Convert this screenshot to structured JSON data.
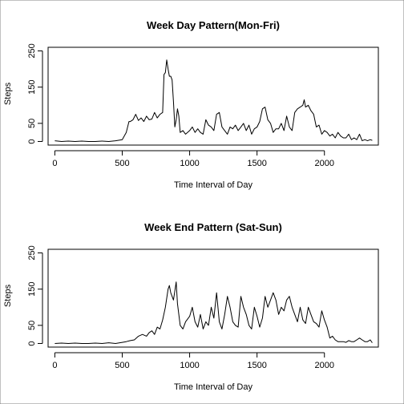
{
  "chart_data": [
    {
      "type": "line",
      "title": "Week Day Pattern(Mon-Fri)",
      "xlabel": "Time Interval of Day",
      "ylabel": "Steps",
      "xlim": [
        -50,
        2400
      ],
      "ylim": [
        -10,
        260
      ],
      "xticks": [
        0,
        500,
        1000,
        1500,
        2000
      ],
      "yticks": [
        0,
        50,
        150,
        250
      ],
      "grid": false,
      "x": [
        0,
        50,
        100,
        150,
        200,
        250,
        300,
        350,
        400,
        450,
        500,
        530,
        550,
        560,
        580,
        600,
        620,
        640,
        660,
        680,
        700,
        720,
        740,
        760,
        780,
        800,
        810,
        820,
        830,
        840,
        850,
        860,
        870,
        880,
        890,
        900,
        910,
        920,
        930,
        950,
        970,
        1000,
        1020,
        1040,
        1060,
        1080,
        1100,
        1120,
        1140,
        1160,
        1180,
        1200,
        1220,
        1240,
        1260,
        1280,
        1300,
        1320,
        1340,
        1360,
        1380,
        1400,
        1420,
        1440,
        1460,
        1480,
        1500,
        1520,
        1540,
        1560,
        1580,
        1600,
        1620,
        1640,
        1660,
        1680,
        1700,
        1720,
        1740,
        1760,
        1780,
        1800,
        1820,
        1840,
        1850,
        1860,
        1880,
        1900,
        1920,
        1940,
        1960,
        1980,
        2000,
        2020,
        2040,
        2060,
        2080,
        2100,
        2120,
        2140,
        2160,
        2180,
        2200,
        2220,
        2240,
        2260,
        2280,
        2300,
        2320,
        2340,
        2355
      ],
      "y": [
        2,
        0,
        1,
        0,
        1,
        0,
        0,
        1,
        0,
        2,
        5,
        25,
        55,
        55,
        60,
        75,
        58,
        65,
        55,
        70,
        60,
        62,
        80,
        65,
        75,
        80,
        185,
        190,
        225,
        200,
        180,
        180,
        170,
        110,
        40,
        60,
        90,
        70,
        25,
        30,
        20,
        30,
        40,
        25,
        35,
        25,
        20,
        60,
        45,
        40,
        30,
        75,
        80,
        40,
        30,
        20,
        40,
        35,
        45,
        30,
        40,
        50,
        30,
        45,
        20,
        35,
        40,
        55,
        90,
        95,
        60,
        50,
        25,
        35,
        35,
        50,
        30,
        70,
        40,
        30,
        80,
        90,
        95,
        100,
        115,
        95,
        100,
        85,
        75,
        40,
        45,
        20,
        30,
        25,
        15,
        20,
        10,
        25,
        15,
        10,
        10,
        20,
        5,
        10,
        5,
        20,
        2,
        5,
        2,
        5,
        3
      ],
      "color": "#000000"
    },
    {
      "type": "line",
      "title": "Week End Pattern (Sat-Sun)",
      "xlabel": "Time Interval of Day",
      "ylabel": "Steps",
      "xlim": [
        -50,
        2400
      ],
      "ylim": [
        -10,
        260
      ],
      "xticks": [
        0,
        500,
        1000,
        1500,
        2000
      ],
      "yticks": [
        0,
        50,
        150,
        250
      ],
      "grid": false,
      "x": [
        0,
        50,
        100,
        150,
        200,
        250,
        300,
        350,
        400,
        450,
        500,
        530,
        560,
        590,
        620,
        650,
        680,
        700,
        720,
        740,
        760,
        780,
        800,
        820,
        840,
        850,
        860,
        880,
        900,
        910,
        930,
        950,
        970,
        1000,
        1020,
        1040,
        1060,
        1080,
        1100,
        1120,
        1140,
        1160,
        1180,
        1200,
        1220,
        1240,
        1260,
        1280,
        1300,
        1320,
        1340,
        1360,
        1380,
        1400,
        1420,
        1440,
        1460,
        1480,
        1500,
        1520,
        1540,
        1560,
        1580,
        1600,
        1620,
        1640,
        1660,
        1680,
        1700,
        1720,
        1740,
        1760,
        1780,
        1800,
        1820,
        1840,
        1860,
        1880,
        1900,
        1920,
        1940,
        1960,
        1980,
        2000,
        2020,
        2040,
        2060,
        2080,
        2100,
        2120,
        2140,
        2160,
        2180,
        2200,
        2220,
        2240,
        2260,
        2280,
        2300,
        2320,
        2340,
        2355
      ],
      "y": [
        0,
        1,
        0,
        1,
        0,
        0,
        1,
        0,
        2,
        0,
        3,
        5,
        8,
        10,
        20,
        25,
        20,
        30,
        35,
        25,
        45,
        40,
        65,
        100,
        150,
        160,
        140,
        120,
        170,
        110,
        50,
        40,
        60,
        75,
        100,
        60,
        45,
        80,
        40,
        60,
        50,
        100,
        70,
        140,
        60,
        40,
        80,
        130,
        100,
        60,
        50,
        45,
        130,
        100,
        80,
        50,
        40,
        100,
        75,
        45,
        70,
        130,
        100,
        120,
        140,
        120,
        80,
        100,
        90,
        120,
        130,
        100,
        80,
        60,
        100,
        65,
        55,
        100,
        80,
        60,
        55,
        45,
        90,
        65,
        45,
        15,
        20,
        10,
        5,
        5,
        5,
        3,
        8,
        5,
        5,
        10,
        15,
        10,
        5,
        5,
        10,
        2
      ],
      "color": "#000000"
    }
  ]
}
